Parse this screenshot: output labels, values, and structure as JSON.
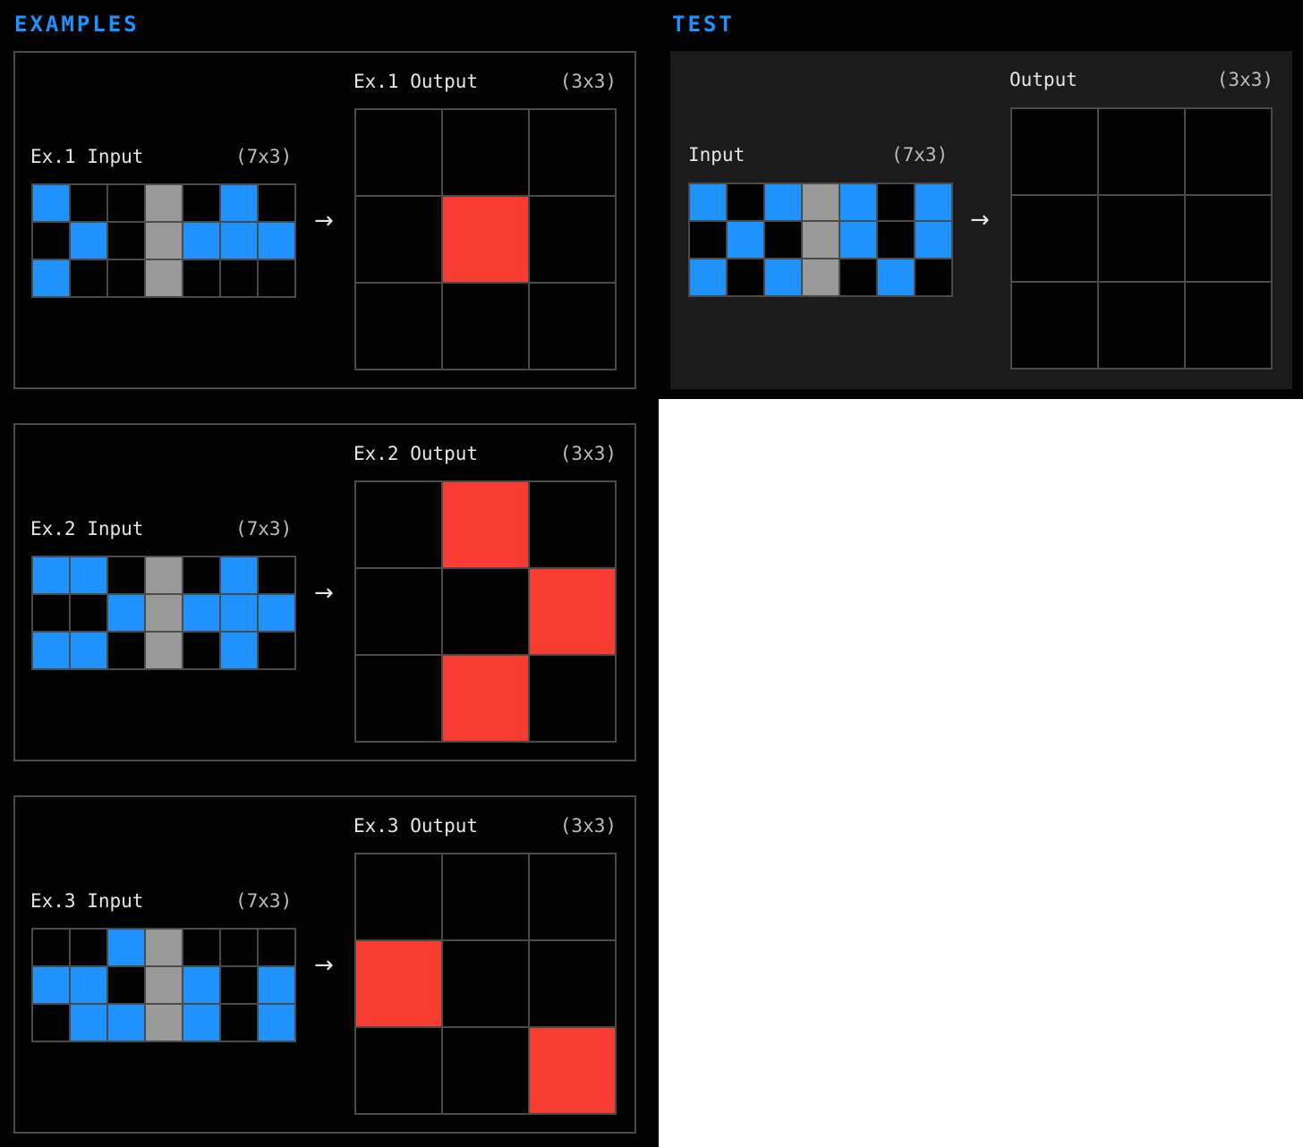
{
  "headings": {
    "examples": "EXAMPLES",
    "test": "TEST"
  },
  "arrow": "→",
  "colors": {
    "0": "#000000",
    "1": "#1e93ff",
    "2": "#f93c31",
    "5": "#999999"
  },
  "examples": [
    {
      "input_label": "Ex.1 Input",
      "input_dims": "(7x3)",
      "output_label": "Ex.1 Output",
      "output_dims": "(3x3)",
      "input": [
        [
          1,
          0,
          0,
          5,
          0,
          1,
          0
        ],
        [
          0,
          1,
          0,
          5,
          1,
          1,
          1
        ],
        [
          1,
          0,
          0,
          5,
          0,
          0,
          0
        ]
      ],
      "output": [
        [
          0,
          0,
          0
        ],
        [
          0,
          2,
          0
        ],
        [
          0,
          0,
          0
        ]
      ]
    },
    {
      "input_label": "Ex.2 Input",
      "input_dims": "(7x3)",
      "output_label": "Ex.2 Output",
      "output_dims": "(3x3)",
      "input": [
        [
          1,
          1,
          0,
          5,
          0,
          1,
          0
        ],
        [
          0,
          0,
          1,
          5,
          1,
          1,
          1
        ],
        [
          1,
          1,
          0,
          5,
          0,
          1,
          0
        ]
      ],
      "output": [
        [
          0,
          2,
          0
        ],
        [
          0,
          0,
          2
        ],
        [
          0,
          2,
          0
        ]
      ]
    },
    {
      "input_label": "Ex.3 Input",
      "input_dims": "(7x3)",
      "output_label": "Ex.3 Output",
      "output_dims": "(3x3)",
      "input": [
        [
          0,
          0,
          1,
          5,
          0,
          0,
          0
        ],
        [
          1,
          1,
          0,
          5,
          1,
          0,
          1
        ],
        [
          0,
          1,
          1,
          5,
          1,
          0,
          1
        ]
      ],
      "output": [
        [
          0,
          0,
          0
        ],
        [
          2,
          0,
          0
        ],
        [
          0,
          0,
          2
        ]
      ]
    }
  ],
  "test": {
    "input_label": "Input",
    "input_dims": "(7x3)",
    "output_label": "Output",
    "output_dims": "(3x3)",
    "input": [
      [
        1,
        0,
        1,
        5,
        1,
        0,
        1
      ],
      [
        0,
        1,
        0,
        5,
        1,
        0,
        1
      ],
      [
        1,
        0,
        1,
        5,
        0,
        1,
        0
      ]
    ],
    "output": [
      [
        0,
        0,
        0
      ],
      [
        0,
        0,
        0
      ],
      [
        0,
        0,
        0
      ]
    ]
  }
}
